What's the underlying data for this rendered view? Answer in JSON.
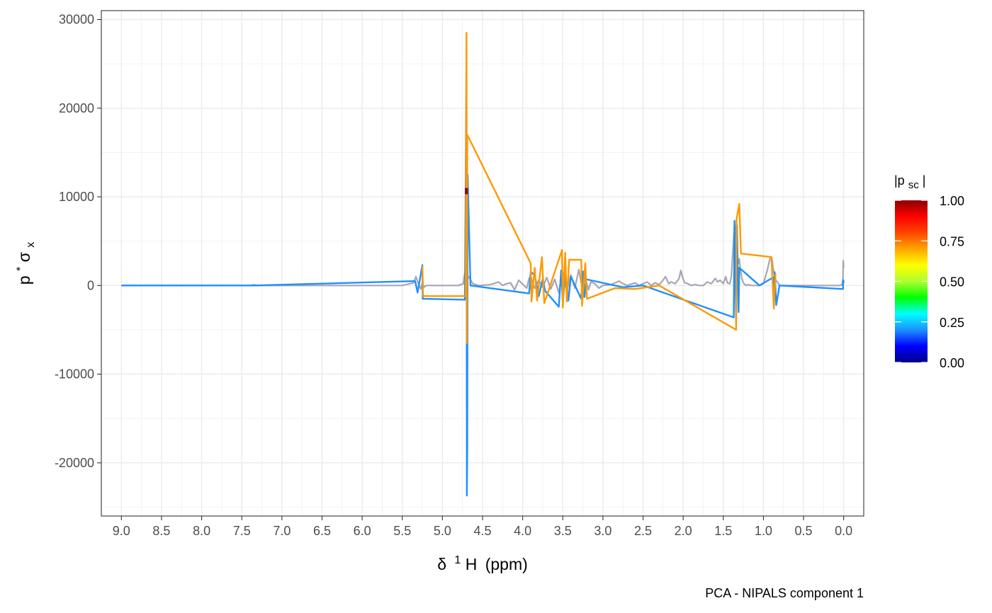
{
  "chart_data": {
    "type": "line",
    "caption": "PCA - NIPALS component 1",
    "xlabel": {
      "delta": "δ",
      "sup": "1",
      "rest": "H",
      "unit": "(ppm)"
    },
    "ylabel": {
      "base": "p",
      "star": "*",
      "sigma": "σ",
      "sub": "x"
    },
    "xlim": [
      9.25,
      -0.25
    ],
    "ylim": [
      -26000,
      31000
    ],
    "x_reversed": true,
    "x_ticks": [
      9.0,
      8.5,
      8.0,
      7.5,
      7.0,
      6.5,
      6.0,
      5.5,
      5.0,
      4.5,
      4.0,
      3.5,
      3.0,
      2.5,
      2.0,
      1.5,
      1.0,
      0.5,
      0.0
    ],
    "x_tick_labels": [
      "9.0",
      "8.5",
      "8.0",
      "7.5",
      "7.0",
      "6.5",
      "6.0",
      "5.5",
      "5.0",
      "4.5",
      "4.0",
      "3.5",
      "3.0",
      "2.5",
      "2.0",
      "1.5",
      "1.0",
      "0.5",
      "0.0"
    ],
    "y_ticks": [
      -20000,
      -10000,
      0,
      10000,
      20000,
      30000
    ],
    "y_tick_labels": [
      "-20000",
      "-10000",
      "0",
      "10000",
      "20000",
      "30000"
    ],
    "grid": true,
    "series": [
      {
        "color": "#1e90ff",
        "x": [
          9.0,
          7.35,
          5.34,
          5.31,
          5.25,
          5.245,
          4.72,
          4.7,
          4.695,
          4.69,
          4.685,
          4.65,
          3.92,
          3.9,
          3.85,
          3.8,
          3.75,
          3.72,
          3.55,
          3.52,
          3.5,
          3.47,
          3.43,
          3.4,
          3.27,
          3.25,
          3.23,
          3.21,
          2.75,
          2.5,
          1.37,
          1.36,
          1.34,
          1.33,
          1.31,
          1.3,
          1.05,
          0.88,
          0.87,
          0.86,
          0.84,
          0.8,
          0.01,
          0.005,
          0.0
        ],
        "y": [
          0,
          0,
          500,
          -800,
          2300,
          -1500,
          -1600,
          25000,
          -23700,
          -18000,
          12500,
          0,
          -900,
          1500,
          1200,
          -1200,
          700,
          -600,
          -2400,
          1700,
          -2000,
          1200,
          -1700,
          1000,
          -1500,
          1600,
          -1300,
          700,
          -200,
          0,
          -3600,
          7300,
          -4200,
          6800,
          -3000,
          2000,
          0,
          900,
          -1600,
          1500,
          -2200,
          0,
          -400,
          600,
          300
        ]
      },
      {
        "color": "#ff9900",
        "x": [
          5.25,
          5.24,
          4.71,
          4.7,
          4.695,
          4.69,
          3.9,
          3.89,
          3.85,
          3.82,
          3.76,
          3.73,
          3.51,
          3.5,
          3.47,
          3.45,
          3.42,
          3.27,
          3.26,
          3.22,
          3.2,
          2.85,
          2.6,
          2.3,
          1.34,
          1.335,
          1.3,
          1.28,
          0.9,
          0.87,
          0.85
        ],
        "y": [
          2200,
          -1200,
          -1200,
          28500,
          -6500,
          17000,
          2500,
          -1800,
          2000,
          -1700,
          3200,
          -2000,
          4000,
          -2500,
          3700,
          -1800,
          2900,
          2900,
          -2300,
          2500,
          -1500,
          -300,
          -400,
          0,
          -5000,
          7500,
          9200,
          3600,
          3200,
          -2600,
          1300
        ]
      },
      {
        "color": "#8b0000",
        "x": [
          4.7,
          4.7
        ],
        "y": [
          11000,
          10300
        ]
      },
      {
        "color": "#a8a5b5",
        "x": [
          9.0,
          8.0,
          7.4,
          7.35,
          7.3,
          6.0,
          5.5,
          5.36,
          5.33,
          5.3,
          5.27,
          5.25,
          5.23,
          5.2,
          5.0,
          4.8,
          4.74,
          4.72,
          4.66,
          4.62,
          4.55,
          4.4,
          4.3,
          4.25,
          4.2,
          4.15,
          4.1,
          4.05,
          3.95,
          3.92,
          3.9,
          3.85,
          3.8,
          3.75,
          3.7,
          3.65,
          3.6,
          3.55,
          3.5,
          3.45,
          3.4,
          3.35,
          3.3,
          3.26,
          3.22,
          3.18,
          3.15,
          3.1,
          3.05,
          3.0,
          2.9,
          2.8,
          2.75,
          2.7,
          2.6,
          2.55,
          2.5,
          2.45,
          2.4,
          2.35,
          2.3,
          2.25,
          2.22,
          2.18,
          2.15,
          2.1,
          2.05,
          2.03,
          2.01,
          1.98,
          1.94,
          1.9,
          1.85,
          1.8,
          1.75,
          1.7,
          1.65,
          1.6,
          1.57,
          1.54,
          1.5,
          1.47,
          1.45,
          1.42,
          1.4,
          1.38,
          1.36,
          1.34,
          1.33,
          1.32,
          1.31,
          1.3,
          1.29,
          1.27,
          1.25,
          1.22,
          1.2,
          1.15,
          1.1,
          1.05,
          1.0,
          0.95,
          0.92,
          0.9,
          0.89,
          0.88,
          0.87,
          0.86,
          0.85,
          0.84,
          0.82,
          0.8,
          0.75,
          0.6,
          0.4,
          0.2,
          0.1,
          0.05,
          0.02,
          0.01,
          0.005,
          0.0
        ],
        "y": [
          0,
          0,
          0,
          80,
          0,
          0,
          0,
          300,
          1000,
          200,
          -400,
          300,
          -200,
          0,
          0,
          0,
          200,
          1500,
          800,
          200,
          0,
          100,
          400,
          0,
          200,
          300,
          -500,
          600,
          -300,
          800,
          1000,
          -300,
          600,
          -200,
          900,
          -400,
          700,
          -800,
          1500,
          -600,
          1200,
          -300,
          1800,
          -200,
          900,
          -500,
          400,
          200,
          -300,
          0,
          100,
          500,
          200,
          0,
          300,
          0,
          200,
          400,
          0,
          300,
          100,
          600,
          1000,
          200,
          400,
          200,
          800,
          1700,
          1000,
          300,
          200,
          0,
          100,
          0,
          0,
          400,
          200,
          800,
          400,
          600,
          200,
          1000,
          300,
          200,
          1000,
          4000,
          7000,
          6000,
          5000,
          3000,
          2500,
          3000,
          2000,
          800,
          300,
          0,
          100,
          0,
          0,
          0,
          200,
          1800,
          3000,
          3200,
          2800,
          2000,
          1500,
          1000,
          800,
          500,
          300,
          0,
          0,
          0,
          0,
          0,
          0,
          0,
          100,
          800,
          2800,
          2000
        ]
      }
    ],
    "colorbar": {
      "title": {
        "base": "|p",
        "sub": "sc",
        "close": "|"
      },
      "range": [
        0,
        1
      ],
      "ticks": [
        0.0,
        0.25,
        0.5,
        0.75,
        1.0
      ],
      "tick_labels": [
        "0.00",
        "0.25",
        "0.50",
        "0.75",
        "1.00"
      ],
      "stops": [
        "#00008b",
        "#0000ff",
        "#1e90ff",
        "#00ffff",
        "#00ff00",
        "#adff2f",
        "#ffff00",
        "#ffa500",
        "#ff4500",
        "#ff0000",
        "#8b0000"
      ]
    }
  }
}
